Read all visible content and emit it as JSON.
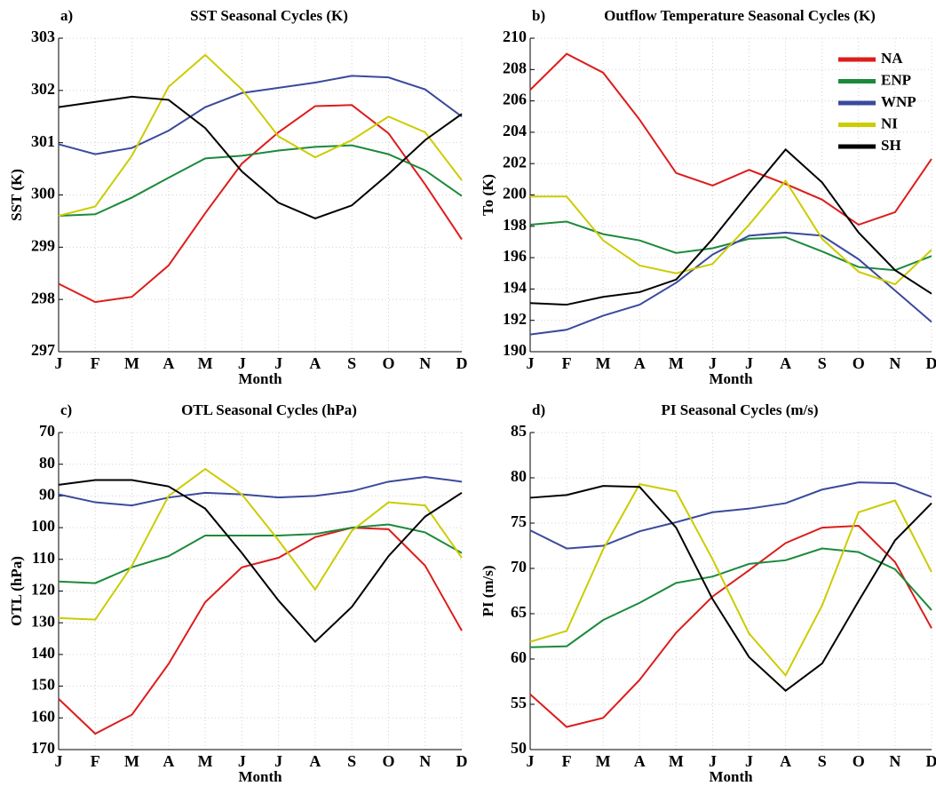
{
  "chart_data": [
    {
      "type": "line",
      "panel_label": "a)",
      "title": "SST Seasonal Cycles (K)",
      "xlabel": "Month",
      "ylabel": "SST (K)",
      "categories": [
        "J",
        "F",
        "M",
        "A",
        "M",
        "J",
        "J",
        "A",
        "S",
        "O",
        "N",
        "D"
      ],
      "ylim": [
        297,
        303
      ],
      "yticks": [
        297,
        298,
        299,
        300,
        301,
        302,
        303
      ],
      "grid": true,
      "series": [
        {
          "color": "#dd1c1c",
          "values": [
            298.3,
            297.95,
            298.05,
            298.65,
            299.65,
            300.6,
            301.2,
            301.7,
            301.72,
            301.18,
            300.2,
            299.15
          ]
        },
        {
          "color": "#1b8a3a",
          "values": [
            299.6,
            299.63,
            299.95,
            300.33,
            300.7,
            300.75,
            300.85,
            300.92,
            300.95,
            300.78,
            300.47,
            299.98
          ]
        },
        {
          "color": "#3a4a9c",
          "values": [
            300.97,
            300.78,
            300.9,
            301.23,
            301.68,
            301.95,
            302.05,
            302.15,
            302.28,
            302.25,
            302.02,
            301.5
          ]
        },
        {
          "color": "#cccc00",
          "values": [
            299.6,
            299.78,
            300.75,
            302.07,
            302.68,
            302.02,
            301.12,
            300.72,
            301.05,
            301.5,
            301.2,
            300.28
          ]
        },
        {
          "color": "#000000",
          "values": [
            301.68,
            301.78,
            301.88,
            301.82,
            301.28,
            300.45,
            299.85,
            299.55,
            299.8,
            300.4,
            301.05,
            301.55
          ]
        }
      ]
    },
    {
      "type": "line",
      "panel_label": "b)",
      "title": "Outflow Temperature Seasonal Cycles (K)",
      "xlabel": "Month",
      "ylabel": "To (K)",
      "categories": [
        "J",
        "F",
        "M",
        "A",
        "M",
        "J",
        "J",
        "A",
        "S",
        "O",
        "N",
        "D"
      ],
      "ylim": [
        190,
        210
      ],
      "yticks": [
        190,
        192,
        194,
        196,
        198,
        200,
        202,
        204,
        206,
        208,
        210
      ],
      "grid": true,
      "legend": "upper right",
      "series": [
        {
          "name": "NA",
          "color": "#dd1c1c",
          "values": [
            206.7,
            209.0,
            207.8,
            204.8,
            201.4,
            200.6,
            201.6,
            200.7,
            199.7,
            198.1,
            198.9,
            202.3
          ]
        },
        {
          "name": "ENP",
          "color": "#1b8a3a",
          "values": [
            198.1,
            198.3,
            197.5,
            197.1,
            196.3,
            196.6,
            197.2,
            197.3,
            196.4,
            195.4,
            195.2,
            196.1
          ]
        },
        {
          "name": "WNP",
          "color": "#3a4a9c",
          "values": [
            191.1,
            191.4,
            192.3,
            193.0,
            194.4,
            196.2,
            197.4,
            197.6,
            197.4,
            195.9,
            193.9,
            191.9
          ]
        },
        {
          "name": "NI",
          "color": "#cccc00",
          "values": [
            199.9,
            199.9,
            197.1,
            195.5,
            195.0,
            195.6,
            198.1,
            200.9,
            197.2,
            195.1,
            194.3,
            196.5
          ]
        },
        {
          "name": "SH",
          "color": "#000000",
          "values": [
            193.1,
            193.0,
            193.5,
            193.8,
            194.6,
            197.2,
            200.1,
            202.9,
            200.8,
            197.6,
            195.2,
            193.7
          ]
        }
      ]
    },
    {
      "type": "line",
      "panel_label": "c)",
      "title": "OTL Seasonal Cycles (hPa)",
      "xlabel": "Month",
      "ylabel": "OTL (hPa)",
      "categories": [
        "J",
        "F",
        "M",
        "A",
        "M",
        "J",
        "J",
        "A",
        "S",
        "O",
        "N",
        "D"
      ],
      "ylim": [
        170,
        70
      ],
      "yticks": [
        70,
        80,
        90,
        100,
        110,
        120,
        130,
        140,
        150,
        160,
        170
      ],
      "grid": true,
      "series": [
        {
          "color": "#dd1c1c",
          "values": [
            154,
            165,
            159,
            143,
            123.5,
            112.5,
            109.5,
            103,
            100,
            100.5,
            112,
            132.5
          ]
        },
        {
          "color": "#1b8a3a",
          "values": [
            117,
            117.5,
            112.5,
            109,
            102.5,
            102.5,
            102.5,
            102,
            100,
            99,
            101.5,
            108
          ]
        },
        {
          "color": "#3a4a9c",
          "values": [
            89.5,
            92,
            93,
            90.5,
            89,
            89.5,
            90.5,
            90,
            88.5,
            85.5,
            84,
            85.5
          ]
        },
        {
          "color": "#cccc00",
          "values": [
            128.5,
            129,
            112,
            90,
            81.5,
            89.5,
            104,
            119.5,
            101,
            92,
            93,
            109.5
          ]
        },
        {
          "color": "#000000",
          "values": [
            86.5,
            85,
            85,
            87,
            94,
            108,
            123,
            136,
            125,
            109,
            96.5,
            89
          ]
        }
      ]
    },
    {
      "type": "line",
      "panel_label": "d)",
      "title": "PI Seasonal Cycles (m/s)",
      "xlabel": "Month",
      "ylabel": "PI (m/s)",
      "categories": [
        "J",
        "F",
        "M",
        "A",
        "M",
        "J",
        "J",
        "A",
        "S",
        "O",
        "N",
        "D"
      ],
      "ylim": [
        50,
        85
      ],
      "yticks": [
        50,
        55,
        60,
        65,
        70,
        75,
        80,
        85
      ],
      "grid": true,
      "series": [
        {
          "color": "#dd1c1c",
          "values": [
            56.1,
            52.5,
            53.5,
            57.7,
            62.9,
            66.9,
            69.8,
            72.8,
            74.5,
            74.7,
            70.7,
            63.4
          ]
        },
        {
          "color": "#1b8a3a",
          "values": [
            61.3,
            61.4,
            64.3,
            66.2,
            68.4,
            69.1,
            70.5,
            70.9,
            72.2,
            71.8,
            69.9,
            65.4
          ]
        },
        {
          "color": "#3a4a9c",
          "values": [
            74.2,
            72.2,
            72.5,
            74.1,
            75.1,
            76.2,
            76.6,
            77.2,
            78.7,
            79.5,
            79.4,
            77.9
          ]
        },
        {
          "color": "#cccc00",
          "values": [
            61.9,
            63.1,
            72.1,
            79.3,
            78.5,
            71.0,
            62.8,
            58.2,
            65.9,
            76.2,
            77.5,
            69.6
          ]
        },
        {
          "color": "#000000",
          "values": [
            77.8,
            78.1,
            79.1,
            79.0,
            74.5,
            66.6,
            60.2,
            56.5,
            59.5,
            66.4,
            73.1,
            77.2
          ]
        }
      ]
    }
  ]
}
